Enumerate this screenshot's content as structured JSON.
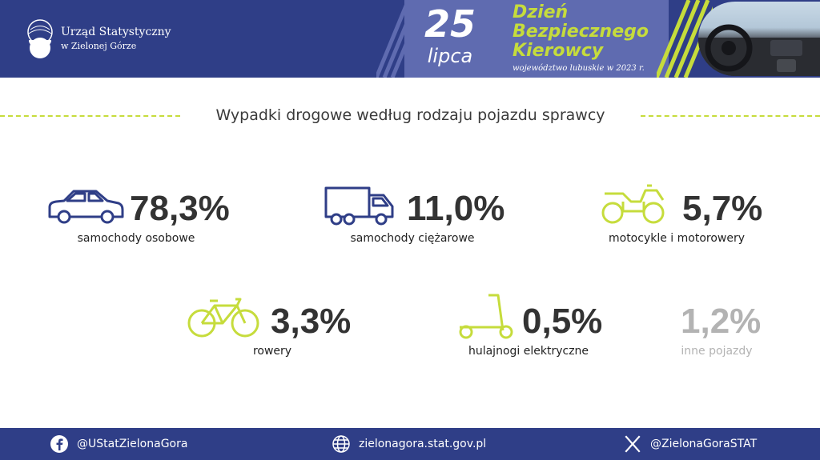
{
  "header": {
    "org_name": "Urząd Statystyczny",
    "org_sub": "w Zielonej Górze",
    "date_day": "25",
    "date_month": "lipca",
    "event_title": [
      "Dzień",
      "Bezpiecznego",
      "Kierowcy"
    ],
    "event_sub": "województwo lubuskie w 2023 r."
  },
  "title": "Wypadki drogowe według rodzaju pojazdu sprawcy",
  "stats": [
    {
      "icon": "car-icon",
      "value": "78,3%",
      "label": "samochody osobowe"
    },
    {
      "icon": "truck-icon",
      "value": "11,0%",
      "label": "samochody ciężarowe"
    },
    {
      "icon": "quad-icon",
      "value": "5,7%",
      "label": "motocykle i motorowery"
    },
    {
      "icon": "bicycle-icon",
      "value": "3,3%",
      "label": "rowery"
    },
    {
      "icon": "scooter-icon",
      "value": "0,5%",
      "label": "hulajnogi elektryczne"
    },
    {
      "icon": "none",
      "value": "1,2%",
      "label": "inne pojazdy"
    }
  ],
  "footer": {
    "facebook": "@UStatZielonaGora",
    "website": "zielonagora.stat.gov.pl",
    "x": "@ZielonaGoraSTAT"
  },
  "colors": {
    "navy": "#2f3e87",
    "panel": "#5f6bb0",
    "accent_green": "#c6dc3c",
    "icon_blue": "#2f3e87",
    "text_dark": "#333333",
    "muted": "#b3b3b3"
  }
}
